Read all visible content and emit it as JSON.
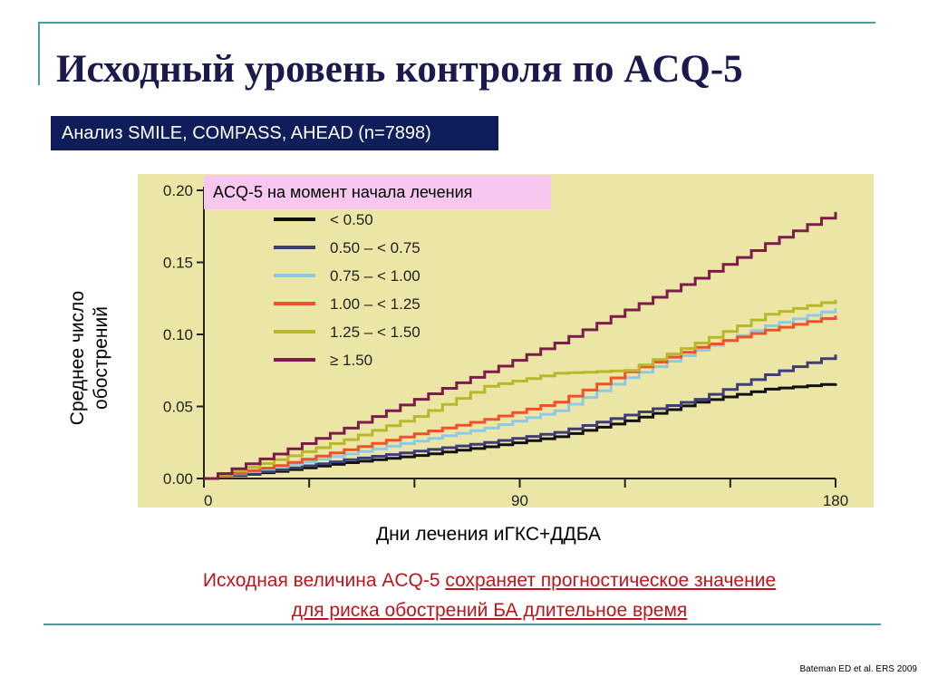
{
  "slide": {
    "title": "Исходный уровень контроля по ACQ-5",
    "subtitle": "Анализ SMILE, COMPASS, AHEAD (n=7898)",
    "legend_title": "ACQ-5 на момент начала лечения",
    "ylabel_line1": "Среднее число",
    "ylabel_line2": "обострений",
    "xlabel": "Дни лечения иГКС+ДДБА",
    "conclusion_plain": "Исходная величина ACQ-5 ",
    "conclusion_underlined_1": "сохраняет прогностическое значение ",
    "conclusion_underlined_2": "для риска обострений БА длительное время",
    "citation": "Bateman  ED et al. ERS 2009"
  },
  "colors": {
    "title": "#1a1a4e",
    "subtitle_bg": "#0f1e5a",
    "legend_title_bg": "#f7c7f0",
    "chart_bg": "#ebe6a6",
    "conclusion": "#c0131b",
    "rule": "#4b9c9e"
  },
  "chart_data": {
    "type": "line",
    "step": true,
    "xlim": [
      0,
      180
    ],
    "ylim": [
      0,
      0.2
    ],
    "x_ticks": [
      "0",
      "90",
      "180"
    ],
    "y_ticks": [
      "0.00",
      "0.05",
      "0.10",
      "0.15",
      "0.20"
    ],
    "legend_position": "top-left",
    "series": [
      {
        "name": "< 0.50",
        "color": "#111111",
        "x": [
          0,
          20,
          40,
          60,
          80,
          100,
          120,
          140,
          160,
          180
        ],
        "values": [
          0,
          0.005,
          0.011,
          0.016,
          0.022,
          0.029,
          0.04,
          0.053,
          0.062,
          0.066
        ]
      },
      {
        "name": "0.50 – < 0.75",
        "color": "#3f3d78",
        "x": [
          0,
          20,
          40,
          60,
          80,
          100,
          120,
          140,
          160,
          180
        ],
        "values": [
          0,
          0.006,
          0.013,
          0.019,
          0.025,
          0.032,
          0.044,
          0.055,
          0.072,
          0.086
        ]
      },
      {
        "name": "0.75 – < 1.00",
        "color": "#8ecae6",
        "x": [
          0,
          20,
          40,
          60,
          80,
          100,
          120,
          140,
          160,
          180
        ],
        "values": [
          0,
          0.008,
          0.017,
          0.026,
          0.035,
          0.047,
          0.07,
          0.089,
          0.106,
          0.118
        ]
      },
      {
        "name": "1.00 – < 1.25",
        "color": "#f0502a",
        "x": [
          0,
          20,
          40,
          60,
          80,
          100,
          120,
          140,
          160,
          180
        ],
        "values": [
          0,
          0.009,
          0.02,
          0.031,
          0.041,
          0.053,
          0.074,
          0.091,
          0.103,
          0.113
        ]
      },
      {
        "name": "1.25 – < 1.50",
        "color": "#b8b82a",
        "x": [
          0,
          20,
          40,
          60,
          80,
          100,
          120,
          140,
          160,
          180
        ],
        "values": [
          0,
          0.013,
          0.027,
          0.043,
          0.064,
          0.073,
          0.075,
          0.094,
          0.114,
          0.124
        ]
      },
      {
        "name": "≥ 1.50",
        "color": "#7d1c4a",
        "x": [
          0,
          20,
          40,
          60,
          80,
          100,
          120,
          140,
          160,
          180
        ],
        "values": [
          0,
          0.017,
          0.035,
          0.055,
          0.074,
          0.094,
          0.117,
          0.139,
          0.163,
          0.185
        ]
      }
    ]
  }
}
